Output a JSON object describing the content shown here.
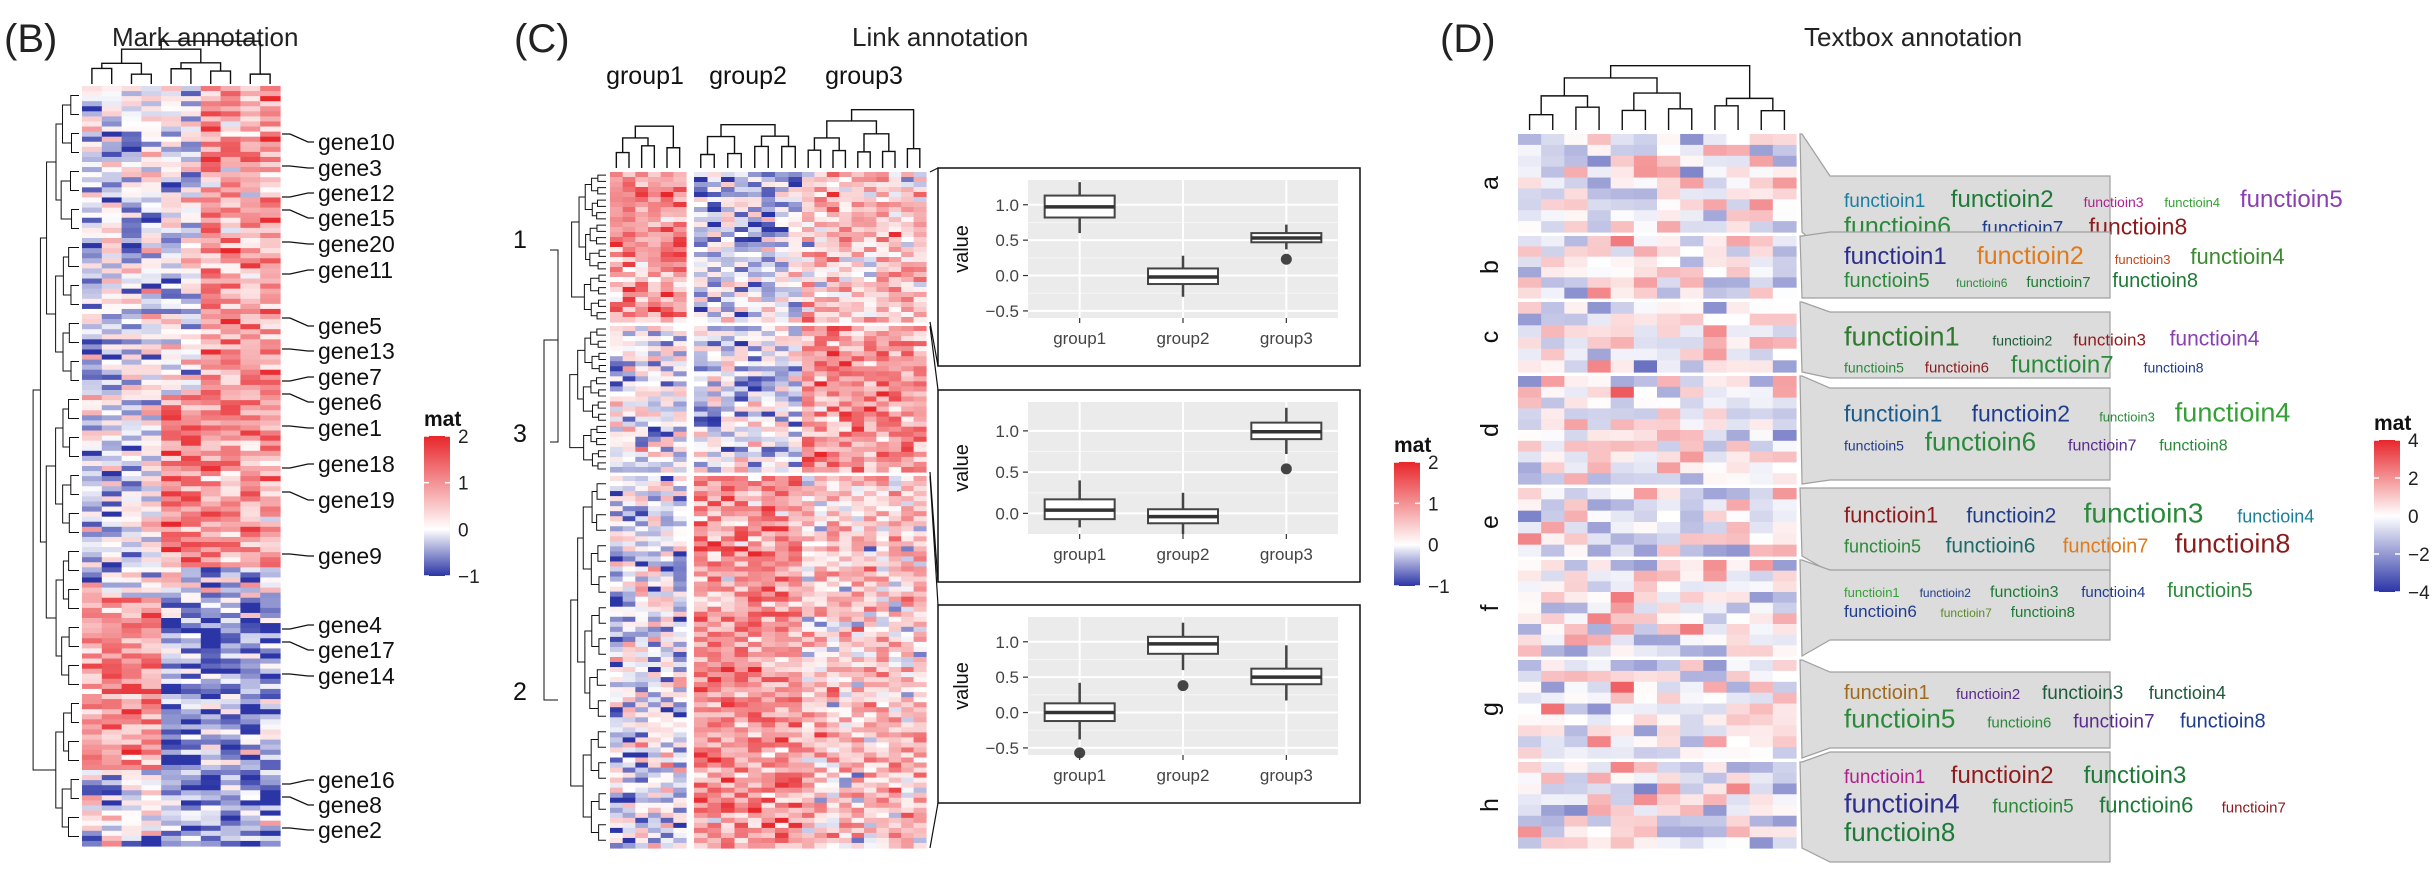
{
  "panels": {
    "b": {
      "letter": "(B)",
      "title": "Mark annotation"
    },
    "c": {
      "letter": "(C)",
      "title": "Link annotation"
    },
    "d": {
      "letter": "(D)",
      "title": "Textbox annotation"
    }
  },
  "legend": {
    "title": "mat"
  },
  "chart_data": [
    {
      "type": "heatmap",
      "title": "Mark annotation",
      "n_rows": 150,
      "n_cols": 10,
      "color_scale": {
        "min": -1,
        "mid": 0,
        "max": 2,
        "ticks": [
          "2",
          "1",
          "0",
          "−1"
        ],
        "colors": [
          "#2b35a6",
          "#ffffff",
          "#e8262b"
        ]
      },
      "gene_marks": [
        "gene10",
        "gene3",
        "gene12",
        "gene15",
        "gene20",
        "gene11",
        "gene5",
        "gene13",
        "gene7",
        "gene6",
        "gene1",
        "gene18",
        "gene19",
        "gene9",
        "gene4",
        "gene17",
        "gene14",
        "gene16",
        "gene8",
        "gene2"
      ]
    },
    {
      "type": "heatmap",
      "title": "Link annotation",
      "column_groups": [
        "group1",
        "group2",
        "group3"
      ],
      "row_slices": [
        "1",
        "3",
        "2"
      ],
      "color_scale": {
        "min": -1,
        "mid": 0,
        "max": 2,
        "ticks": [
          "2",
          "1",
          "0",
          "−1"
        ],
        "colors": [
          "#2b35a6",
          "#ffffff",
          "#e8262b"
        ]
      },
      "boxplots": [
        {
          "slice": "1",
          "ylabel": "value",
          "categories": [
            "group1",
            "group2",
            "group3"
          ],
          "yticks": [
            "1.0",
            "0.5",
            "0.0",
            "−0.5"
          ],
          "ylim": [
            -0.6,
            1.35
          ],
          "boxes": [
            {
              "min": 0.6,
              "q1": 0.82,
              "median": 0.97,
              "q3": 1.13,
              "max": 1.32,
              "outliers": []
            },
            {
              "min": -0.3,
              "q1": -0.12,
              "median": -0.02,
              "q3": 0.1,
              "max": 0.28,
              "outliers": []
            },
            {
              "min": 0.37,
              "q1": 0.47,
              "median": 0.53,
              "q3": 0.6,
              "max": 0.72,
              "outliers": [
                0.23
              ]
            }
          ]
        },
        {
          "slice": "3",
          "ylabel": "value",
          "categories": [
            "group1",
            "group2",
            "group3"
          ],
          "yticks": [
            "1.0",
            "0.5",
            "0.0"
          ],
          "ylim": [
            -0.25,
            1.35
          ],
          "boxes": [
            {
              "min": -0.17,
              "q1": -0.07,
              "median": 0.04,
              "q3": 0.17,
              "max": 0.4,
              "outliers": []
            },
            {
              "min": -0.25,
              "q1": -0.12,
              "median": -0.04,
              "q3": 0.05,
              "max": 0.25,
              "outliers": []
            },
            {
              "min": 0.72,
              "q1": 0.9,
              "median": 0.99,
              "q3": 1.1,
              "max": 1.28,
              "outliers": [
                0.54
              ]
            }
          ]
        },
        {
          "slice": "2",
          "ylabel": "value",
          "categories": [
            "group1",
            "group2",
            "group3"
          ],
          "yticks": [
            "1.0",
            "0.5",
            "0.0",
            "−0.5"
          ],
          "ylim": [
            -0.6,
            1.35
          ],
          "boxes": [
            {
              "min": -0.38,
              "q1": -0.12,
              "median": 0.0,
              "q3": 0.13,
              "max": 0.42,
              "outliers": [
                -0.57
              ]
            },
            {
              "min": 0.6,
              "q1": 0.83,
              "median": 0.97,
              "q3": 1.07,
              "max": 1.27,
              "outliers": [
                0.38
              ]
            },
            {
              "min": 0.17,
              "q1": 0.4,
              "median": 0.5,
              "q3": 0.62,
              "max": 0.95,
              "outliers": []
            }
          ]
        }
      ]
    },
    {
      "type": "heatmap",
      "title": "Textbox annotation",
      "row_slices": [
        "a",
        "b",
        "c",
        "d",
        "e",
        "f",
        "g",
        "h"
      ],
      "color_scale": {
        "min": -4,
        "mid": 0,
        "max": 4,
        "ticks": [
          "4",
          "2",
          "0",
          "−2",
          "−4"
        ],
        "colors": [
          "#2b35a6",
          "#ffffff",
          "#e8262b"
        ]
      },
      "textboxes": [
        {
          "slice": "a",
          "lines": [
            [
              {
                "t": "functioin1",
                "s": 19,
                "c": "#1a7ea1"
              },
              {
                "t": "functioin2",
                "s": 24,
                "c": "#1d7a36"
              },
              {
                "t": "functioin3",
                "s": 14,
                "c": "#b01f8c"
              },
              {
                "t": "functioin4",
                "s": 13,
                "c": "#35a035"
              },
              {
                "t": "functioin5",
                "s": 24,
                "c": "#8a3fb0"
              }
            ],
            [
              {
                "t": "functioin6",
                "s": 25,
                "c": "#2a8a3a"
              },
              {
                "t": "functioin7",
                "s": 19,
                "c": "#203c8c"
              },
              {
                "t": "functioin8",
                "s": 23,
                "c": "#8e1b1b"
              }
            ]
          ]
        },
        {
          "slice": "b",
          "lines": [
            [
              {
                "t": "functioin1",
                "s": 24,
                "c": "#2c2c8e"
              },
              {
                "t": "functioin2",
                "s": 25,
                "c": "#e07a1b"
              },
              {
                "t": "functioin3",
                "s": 13,
                "c": "#c2451b"
              },
              {
                "t": "functioin4",
                "s": 22,
                "c": "#3a8a2e"
              }
            ],
            [
              {
                "t": "functioin5",
                "s": 20,
                "c": "#2a8a3a"
              },
              {
                "t": "functioin6",
                "s": 12,
                "c": "#2a8a3a"
              },
              {
                "t": "functioin7",
                "s": 15,
                "c": "#1d7a36"
              },
              {
                "t": "functioin8",
                "s": 20,
                "c": "#1d7a36"
              }
            ]
          ]
        },
        {
          "slice": "c",
          "lines": [
            [
              {
                "t": "functioin1",
                "s": 27,
                "c": "#2d7a2d"
              },
              {
                "t": "functioin2",
                "s": 14,
                "c": "#1d5a3a"
              },
              {
                "t": "functioin3",
                "s": 17,
                "c": "#8e1b1b"
              },
              {
                "t": "functioin4",
                "s": 21,
                "c": "#8a3fb0"
              }
            ],
            [
              {
                "t": "functioin5",
                "s": 14,
                "c": "#2a8a3a"
              },
              {
                "t": "functioin6",
                "s": 15,
                "c": "#8e1b1b"
              },
              {
                "t": "functioin7",
                "s": 24,
                "c": "#2a8a3a"
              },
              {
                "t": "functioin8",
                "s": 14,
                "c": "#203c8c"
              }
            ]
          ]
        },
        {
          "slice": "d",
          "lines": [
            [
              {
                "t": "functioin1",
                "s": 23,
                "c": "#1a5a8c"
              },
              {
                "t": "functioin2",
                "s": 23,
                "c": "#203c8c"
              },
              {
                "t": "functioin3",
                "s": 13,
                "c": "#2a8a3a"
              },
              {
                "t": "functioin4",
                "s": 27,
                "c": "#35a035"
              }
            ],
            [
              {
                "t": "functioin5",
                "s": 14,
                "c": "#203c8c"
              },
              {
                "t": "functioin6",
                "s": 26,
                "c": "#2a8a3a"
              },
              {
                "t": "functioin7",
                "s": 16,
                "c": "#5a2a8e"
              },
              {
                "t": "functioin8",
                "s": 16,
                "c": "#2a8a3a"
              }
            ]
          ]
        },
        {
          "slice": "e",
          "lines": [
            [
              {
                "t": "functioin1",
                "s": 22,
                "c": "#8e1b1b"
              },
              {
                "t": "functioin2",
                "s": 21,
                "c": "#203c8c"
              },
              {
                "t": "functioin3",
                "s": 28,
                "c": "#2a8a3a"
              },
              {
                "t": "functioin4",
                "s": 18,
                "c": "#1a7e9e"
              }
            ],
            [
              {
                "t": "functioin5",
                "s": 18,
                "c": "#2a8a3a"
              },
              {
                "t": "functioin6",
                "s": 21,
                "c": "#1d6a6a"
              },
              {
                "t": "functioin7",
                "s": 20,
                "c": "#e07a1b"
              },
              {
                "t": "functioin8",
                "s": 27,
                "c": "#8e1b1b"
              }
            ]
          ]
        },
        {
          "slice": "f",
          "lines": [
            [
              {
                "t": "functioin1",
                "s": 13,
                "c": "#35a035"
              },
              {
                "t": "functioin2",
                "s": 12,
                "c": "#203c8c"
              },
              {
                "t": "functioin3",
                "s": 16,
                "c": "#1d7a36"
              },
              {
                "t": "functioin4",
                "s": 15,
                "c": "#203c8c"
              },
              {
                "t": "functioin5",
                "s": 20,
                "c": "#2a8a3a"
              }
            ],
            [
              {
                "t": "functioin6",
                "s": 17,
                "c": "#203c8c"
              },
              {
                "t": "functioin7",
                "s": 12,
                "c": "#5a8a2a"
              },
              {
                "t": "functioin8",
                "s": 15,
                "c": "#1d7a36"
              }
            ]
          ]
        },
        {
          "slice": "g",
          "lines": [
            [
              {
                "t": "functioin1",
                "s": 20,
                "c": "#a06a1b"
              },
              {
                "t": "functioin2",
                "s": 15,
                "c": "#5a2a8e"
              },
              {
                "t": "functioin3",
                "s": 19,
                "c": "#1d5a3a"
              },
              {
                "t": "functioin4",
                "s": 18,
                "c": "#1d5a3a"
              }
            ],
            [
              {
                "t": "functioin5",
                "s": 26,
                "c": "#2a8a3a"
              },
              {
                "t": "functioin6",
                "s": 15,
                "c": "#2a8a3a"
              },
              {
                "t": "functioin7",
                "s": 19,
                "c": "#5a2a8e"
              },
              {
                "t": "functioin8",
                "s": 20,
                "c": "#203c8c"
              }
            ]
          ]
        },
        {
          "slice": "h",
          "lines": [
            [
              {
                "t": "functioin1",
                "s": 19,
                "c": "#b01f8c"
              },
              {
                "t": "functioin2",
                "s": 24,
                "c": "#8e1b1b"
              },
              {
                "t": "functioin3",
                "s": 24,
                "c": "#1d7a36"
              }
            ],
            [
              {
                "t": "functioin4",
                "s": 27,
                "c": "#2c2c8e"
              },
              {
                "t": "functioin5",
                "s": 19,
                "c": "#2a8a3a"
              },
              {
                "t": "functioin6",
                "s": 22,
                "c": "#1d7a36"
              },
              {
                "t": "functioin7",
                "s": 15,
                "c": "#8e1b1b"
              }
            ],
            [
              {
                "t": "functioin8",
                "s": 26,
                "c": "#1d7a36"
              }
            ]
          ]
        }
      ]
    }
  ]
}
